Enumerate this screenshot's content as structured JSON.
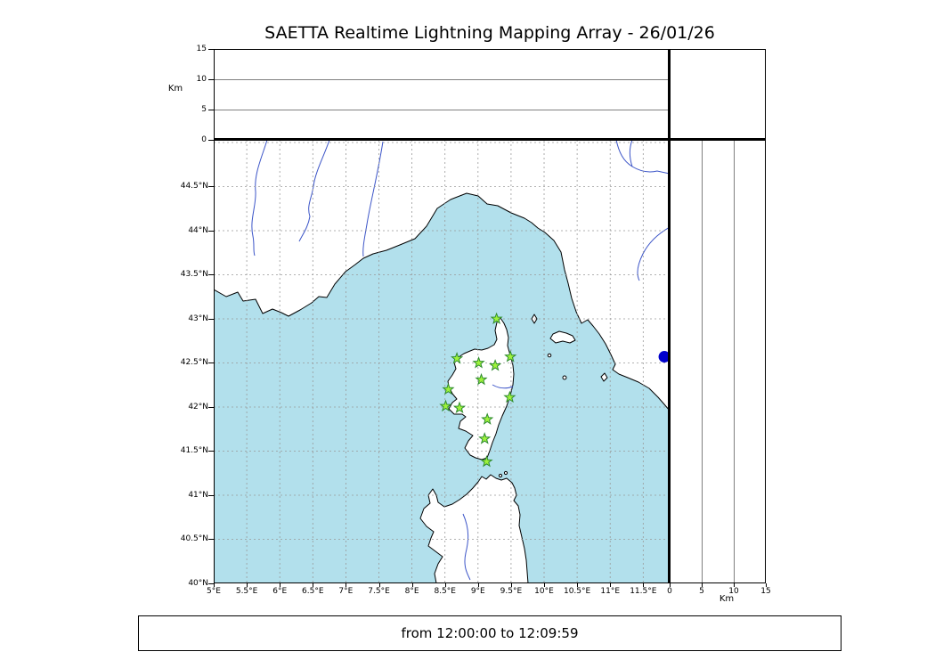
{
  "title": "SAETTA Realtime Lightning Mapping Array - 26/01/26",
  "status_bar": {
    "text": "from 12:00:00 to 12:09:59"
  },
  "top_panel": {
    "ylabel": "Km",
    "yticks": [
      "15",
      "10",
      "5",
      "0"
    ],
    "ymax_km": 15,
    "gridlines_km": [
      10,
      5
    ]
  },
  "right_panel": {
    "xlabel": "Km",
    "xticks": [
      "0",
      "5",
      "10",
      "15"
    ],
    "xmax_km": 15,
    "gridlines_km": [
      5,
      10
    ]
  },
  "map": {
    "extent": {
      "lon_min": 5.0,
      "lon_max": 11.9,
      "lat_min": 40.0,
      "lat_max": 45.03
    },
    "lat_ticks": [
      "44.5°N",
      "44°N",
      "43.5°N",
      "43°N",
      "42.5°N",
      "42°N",
      "41.5°N",
      "41°N",
      "40.5°N",
      "40°N"
    ],
    "lon_ticks": [
      "5°E",
      "5.5°E",
      "6°E",
      "6.5°E",
      "7°E",
      "7.5°E",
      "8°E",
      "8.5°E",
      "9°E",
      "9.5°E",
      "10°E",
      "10.5°E",
      "11°E",
      "11.5°E"
    ],
    "grid_step_deg": 0.5,
    "stations": [
      {
        "lon": 9.28,
        "lat": 43.0
      },
      {
        "lon": 8.68,
        "lat": 42.55
      },
      {
        "lon": 9.01,
        "lat": 42.5
      },
      {
        "lon": 9.26,
        "lat": 42.47
      },
      {
        "lon": 9.49,
        "lat": 42.57
      },
      {
        "lon": 9.05,
        "lat": 42.31
      },
      {
        "lon": 8.55,
        "lat": 42.2
      },
      {
        "lon": 9.48,
        "lat": 42.11
      },
      {
        "lon": 8.51,
        "lat": 42.01
      },
      {
        "lon": 8.72,
        "lat": 41.99
      },
      {
        "lon": 9.14,
        "lat": 41.86
      },
      {
        "lon": 9.1,
        "lat": 41.64
      },
      {
        "lon": 9.13,
        "lat": 41.38
      }
    ],
    "event_dot": {
      "lon": 11.82,
      "lat": 42.57,
      "color": "#0000cc"
    },
    "colors": {
      "sea": "#b2e0ec",
      "land": "#ffffff",
      "coast": "#000000",
      "river": "#3c55c8",
      "grid": "#999999",
      "station_fill": "#9ef23c",
      "station_stroke": "#2e8b2e"
    }
  },
  "chart_data": {
    "type": "map",
    "title": "SAETTA Realtime Lightning Mapping Array - 26/01/26",
    "time_window": "from 12:00:00 to 12:09:59",
    "lon_range_deg_e": [
      5.0,
      11.9
    ],
    "lat_range_deg_n": [
      40.0,
      45.03
    ],
    "altitude_axis_km": [
      0,
      15
    ],
    "station_count": 13,
    "region": "Corsica and western Mediterranean"
  }
}
